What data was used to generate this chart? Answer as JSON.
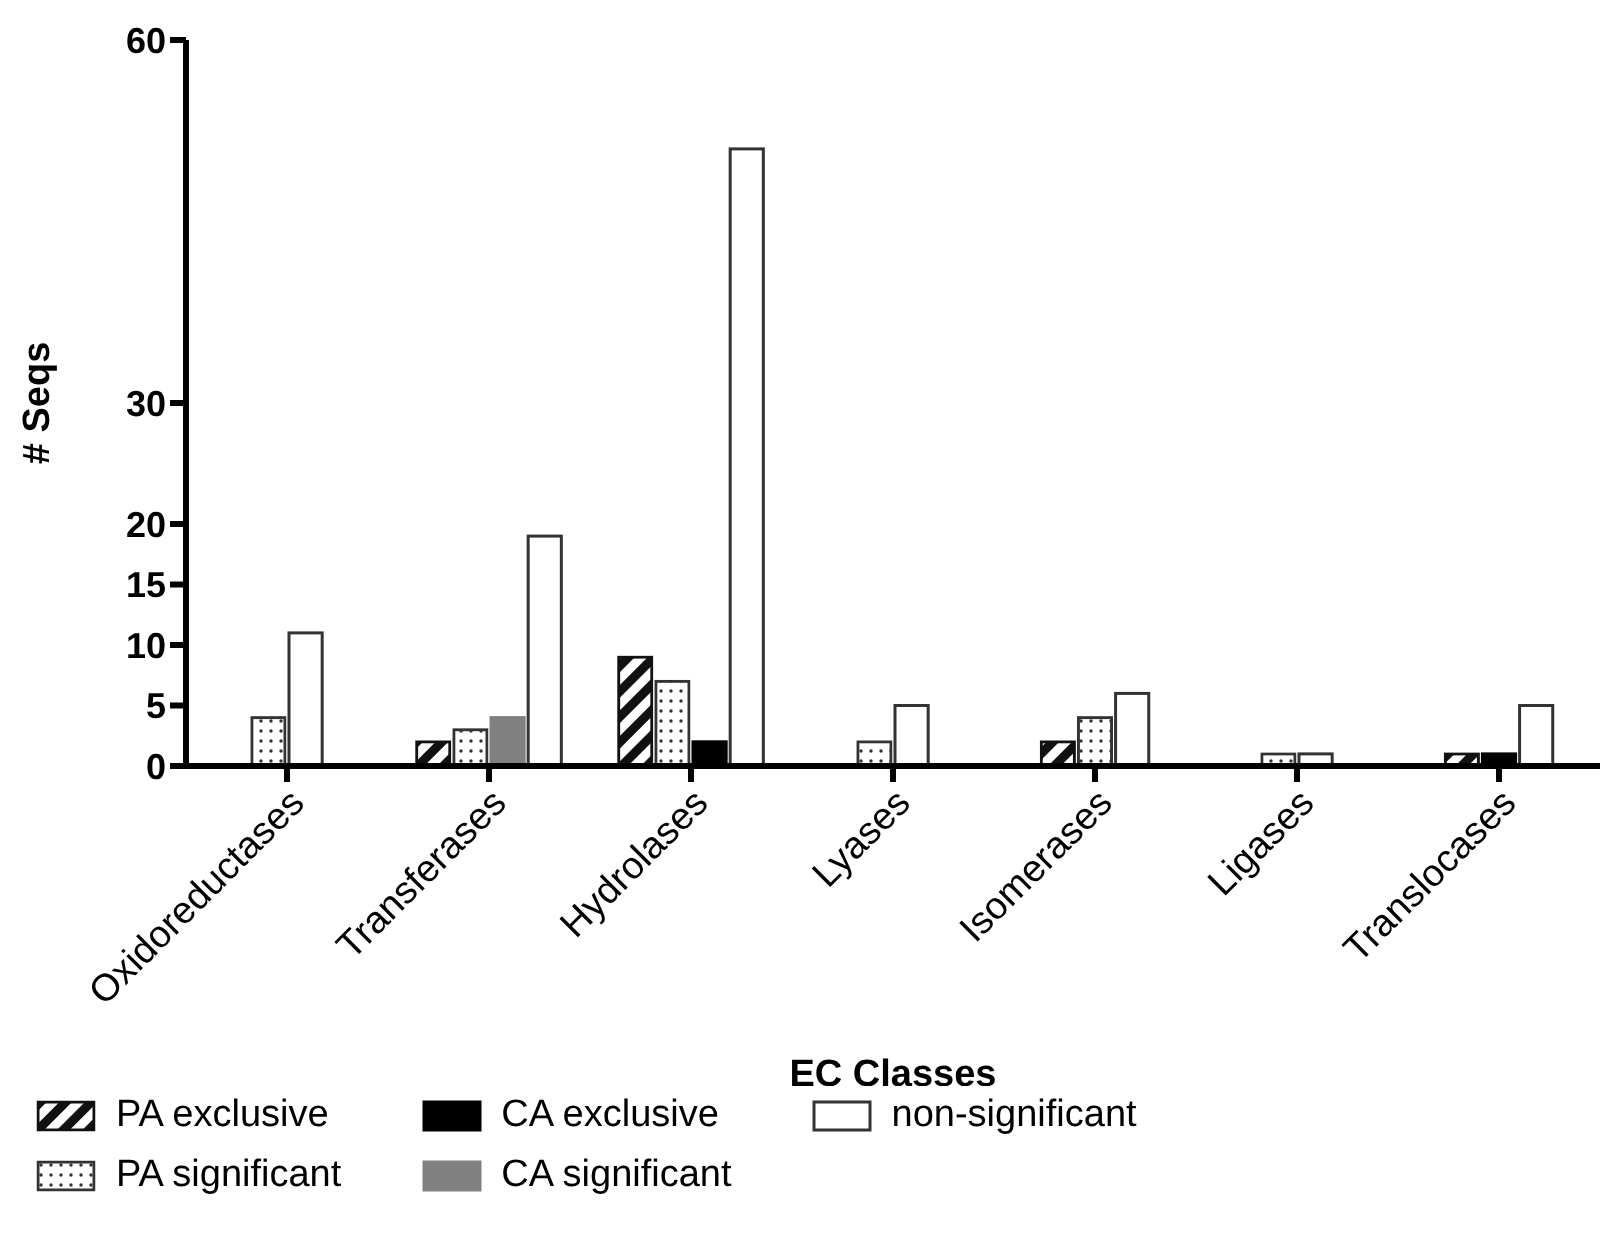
{
  "chart_data": {
    "type": "bar",
    "xlabel": "EC Classes",
    "ylabel": "# Seqs",
    "categories": [
      "Oxidoreductases",
      "Transferases",
      "Hydrolases",
      "Lyases",
      "Isomerases",
      "Ligases",
      "Translocases"
    ],
    "series": [
      {
        "name": "PA exclusive",
        "color": "#111111",
        "values": [
          null,
          2,
          9,
          null,
          2,
          null,
          1
        ]
      },
      {
        "name": "PA significant",
        "color": "#333333",
        "values": [
          4,
          3,
          7,
          2,
          4,
          1,
          null
        ]
      },
      {
        "name": "CA exclusive",
        "color": "#000000",
        "values": [
          null,
          null,
          2,
          null,
          null,
          null,
          1
        ]
      },
      {
        "name": "CA significant",
        "color": "#808080",
        "values": [
          null,
          4,
          null,
          null,
          null,
          null,
          null
        ]
      },
      {
        "name": "non-significant",
        "color": "#ffffff",
        "values": [
          11,
          19,
          51,
          5,
          6,
          1,
          5
        ]
      }
    ],
    "ylim": [
      0,
      60
    ],
    "yticks": [
      0,
      5,
      10,
      15,
      20,
      30,
      60
    ],
    "grid": false,
    "legend": "bottom"
  }
}
